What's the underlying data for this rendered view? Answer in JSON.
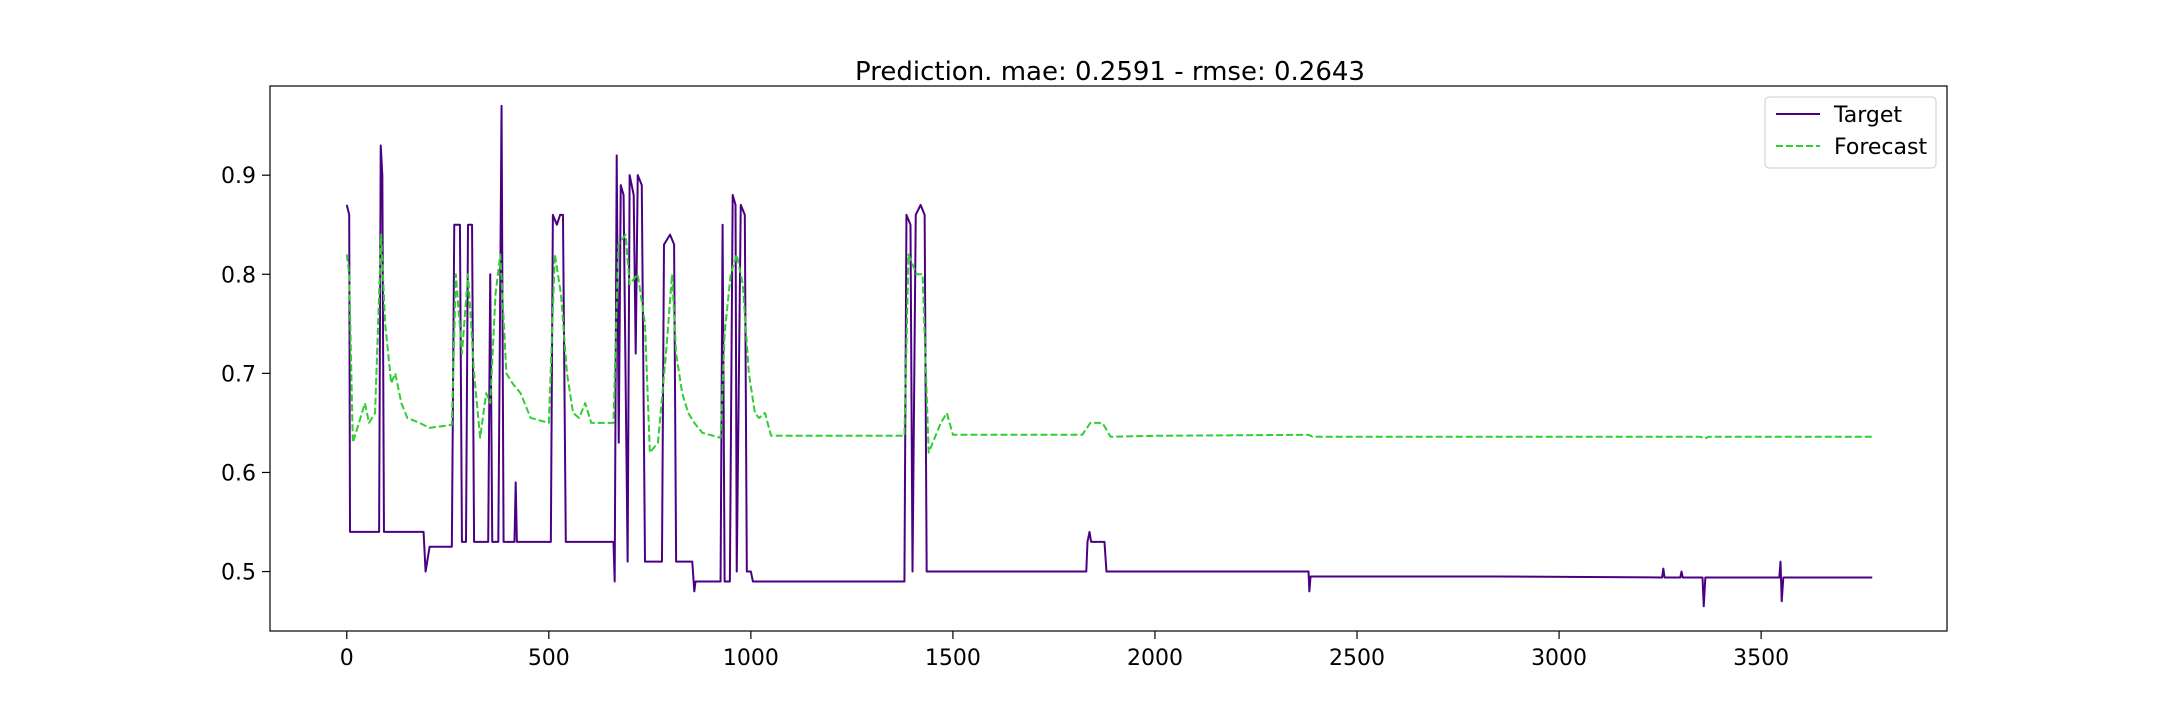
{
  "chart_data": {
    "type": "line",
    "title": "Prediction. mae: 0.2591 - rmse: 0.2643",
    "xlabel": "",
    "ylabel": "",
    "xlim": [
      -190,
      3960
    ],
    "ylim": [
      0.44,
      0.99
    ],
    "x_ticks": [
      0,
      500,
      1000,
      1500,
      2000,
      2500,
      3000,
      3500
    ],
    "x_tick_labels": [
      "0",
      "500",
      "1000",
      "1500",
      "2000",
      "2500",
      "3000",
      "3500"
    ],
    "y_ticks": [
      0.5,
      0.6,
      0.7,
      0.8,
      0.9
    ],
    "y_tick_labels": [
      "0.5",
      "0.6",
      "0.7",
      "0.8",
      "0.9"
    ],
    "grid": false,
    "legend": {
      "position": "top-right",
      "entries": [
        "Target",
        "Forecast"
      ]
    },
    "series": [
      {
        "name": "Target",
        "color": "#4b0082",
        "style": "solid",
        "points": [
          [
            0,
            0.87
          ],
          [
            6,
            0.86
          ],
          [
            8,
            0.54
          ],
          [
            70,
            0.54
          ],
          [
            80,
            0.54
          ],
          [
            84,
            0.93
          ],
          [
            88,
            0.9
          ],
          [
            92,
            0.54
          ],
          [
            190,
            0.54
          ],
          [
            195,
            0.5
          ],
          [
            205,
            0.525
          ],
          [
            260,
            0.525
          ],
          [
            266,
            0.85
          ],
          [
            280,
            0.85
          ],
          [
            285,
            0.53
          ],
          [
            295,
            0.53
          ],
          [
            300,
            0.85
          ],
          [
            310,
            0.85
          ],
          [
            315,
            0.53
          ],
          [
            350,
            0.53
          ],
          [
            355,
            0.8
          ],
          [
            360,
            0.53
          ],
          [
            375,
            0.53
          ],
          [
            380,
            0.8
          ],
          [
            383,
            0.97
          ],
          [
            388,
            0.53
          ],
          [
            415,
            0.53
          ],
          [
            418,
            0.59
          ],
          [
            421,
            0.53
          ],
          [
            505,
            0.53
          ],
          [
            510,
            0.86
          ],
          [
            520,
            0.85
          ],
          [
            528,
            0.86
          ],
          [
            535,
            0.86
          ],
          [
            542,
            0.53
          ],
          [
            660,
            0.53
          ],
          [
            663,
            0.49
          ],
          [
            668,
            0.92
          ],
          [
            673,
            0.63
          ],
          [
            678,
            0.89
          ],
          [
            685,
            0.88
          ],
          [
            695,
            0.51
          ],
          [
            700,
            0.9
          ],
          [
            710,
            0.88
          ],
          [
            715,
            0.72
          ],
          [
            720,
            0.9
          ],
          [
            730,
            0.89
          ],
          [
            738,
            0.51
          ],
          [
            780,
            0.51
          ],
          [
            785,
            0.83
          ],
          [
            800,
            0.84
          ],
          [
            810,
            0.83
          ],
          [
            815,
            0.51
          ],
          [
            855,
            0.51
          ],
          [
            860,
            0.48
          ],
          [
            863,
            0.49
          ],
          [
            925,
            0.49
          ],
          [
            930,
            0.85
          ],
          [
            935,
            0.49
          ],
          [
            948,
            0.49
          ],
          [
            955,
            0.88
          ],
          [
            962,
            0.87
          ],
          [
            965,
            0.5
          ],
          [
            975,
            0.87
          ],
          [
            985,
            0.86
          ],
          [
            990,
            0.5
          ],
          [
            1000,
            0.5
          ],
          [
            1005,
            0.49
          ],
          [
            1380,
            0.49
          ],
          [
            1385,
            0.86
          ],
          [
            1395,
            0.85
          ],
          [
            1400,
            0.5
          ],
          [
            1408,
            0.86
          ],
          [
            1420,
            0.87
          ],
          [
            1430,
            0.86
          ],
          [
            1435,
            0.5
          ],
          [
            1830,
            0.5
          ],
          [
            1833,
            0.53
          ],
          [
            1838,
            0.54
          ],
          [
            1842,
            0.53
          ],
          [
            1875,
            0.53
          ],
          [
            1880,
            0.5
          ],
          [
            2380,
            0.5
          ],
          [
            2382,
            0.48
          ],
          [
            2385,
            0.495
          ],
          [
            2840,
            0.495
          ],
          [
            3255,
            0.494
          ],
          [
            3258,
            0.503
          ],
          [
            3261,
            0.494
          ],
          [
            3300,
            0.494
          ],
          [
            3303,
            0.5
          ],
          [
            3306,
            0.494
          ],
          [
            3355,
            0.494
          ],
          [
            3358,
            0.465
          ],
          [
            3362,
            0.494
          ],
          [
            3545,
            0.494
          ],
          [
            3548,
            0.51
          ],
          [
            3551,
            0.47
          ],
          [
            3555,
            0.494
          ],
          [
            3775,
            0.494
          ]
        ]
      },
      {
        "name": "Forecast",
        "color": "#32cd32",
        "style": "dashed",
        "points": [
          [
            0,
            0.82
          ],
          [
            6,
            0.8
          ],
          [
            15,
            0.63
          ],
          [
            30,
            0.65
          ],
          [
            45,
            0.67
          ],
          [
            55,
            0.65
          ],
          [
            70,
            0.66
          ],
          [
            85,
            0.84
          ],
          [
            95,
            0.75
          ],
          [
            110,
            0.69
          ],
          [
            120,
            0.7
          ],
          [
            135,
            0.67
          ],
          [
            150,
            0.655
          ],
          [
            180,
            0.65
          ],
          [
            205,
            0.645
          ],
          [
            260,
            0.648
          ],
          [
            270,
            0.8
          ],
          [
            285,
            0.72
          ],
          [
            300,
            0.8
          ],
          [
            315,
            0.7
          ],
          [
            330,
            0.635
          ],
          [
            345,
            0.68
          ],
          [
            355,
            0.67
          ],
          [
            368,
            0.78
          ],
          [
            380,
            0.82
          ],
          [
            395,
            0.7
          ],
          [
            410,
            0.69
          ],
          [
            430,
            0.68
          ],
          [
            455,
            0.655
          ],
          [
            500,
            0.65
          ],
          [
            515,
            0.82
          ],
          [
            530,
            0.78
          ],
          [
            545,
            0.7
          ],
          [
            560,
            0.66
          ],
          [
            575,
            0.655
          ],
          [
            590,
            0.67
          ],
          [
            605,
            0.65
          ],
          [
            660,
            0.65
          ],
          [
            672,
            0.83
          ],
          [
            690,
            0.84
          ],
          [
            700,
            0.79
          ],
          [
            720,
            0.8
          ],
          [
            738,
            0.75
          ],
          [
            750,
            0.62
          ],
          [
            770,
            0.63
          ],
          [
            790,
            0.72
          ],
          [
            805,
            0.8
          ],
          [
            815,
            0.72
          ],
          [
            830,
            0.68
          ],
          [
            845,
            0.66
          ],
          [
            860,
            0.65
          ],
          [
            880,
            0.64
          ],
          [
            925,
            0.635
          ],
          [
            935,
            0.74
          ],
          [
            950,
            0.8
          ],
          [
            965,
            0.82
          ],
          [
            980,
            0.79
          ],
          [
            995,
            0.7
          ],
          [
            1010,
            0.66
          ],
          [
            1020,
            0.655
          ],
          [
            1035,
            0.66
          ],
          [
            1050,
            0.637
          ],
          [
            1380,
            0.637
          ],
          [
            1390,
            0.82
          ],
          [
            1410,
            0.8
          ],
          [
            1425,
            0.8
          ],
          [
            1440,
            0.62
          ],
          [
            1455,
            0.635
          ],
          [
            1470,
            0.65
          ],
          [
            1485,
            0.66
          ],
          [
            1500,
            0.638
          ],
          [
            1820,
            0.638
          ],
          [
            1840,
            0.65
          ],
          [
            1870,
            0.65
          ],
          [
            1890,
            0.636
          ],
          [
            2000,
            0.637
          ],
          [
            2380,
            0.638
          ],
          [
            2390,
            0.636
          ],
          [
            3350,
            0.636
          ],
          [
            3360,
            0.634
          ],
          [
            3370,
            0.636
          ],
          [
            3775,
            0.636
          ]
        ]
      }
    ]
  }
}
